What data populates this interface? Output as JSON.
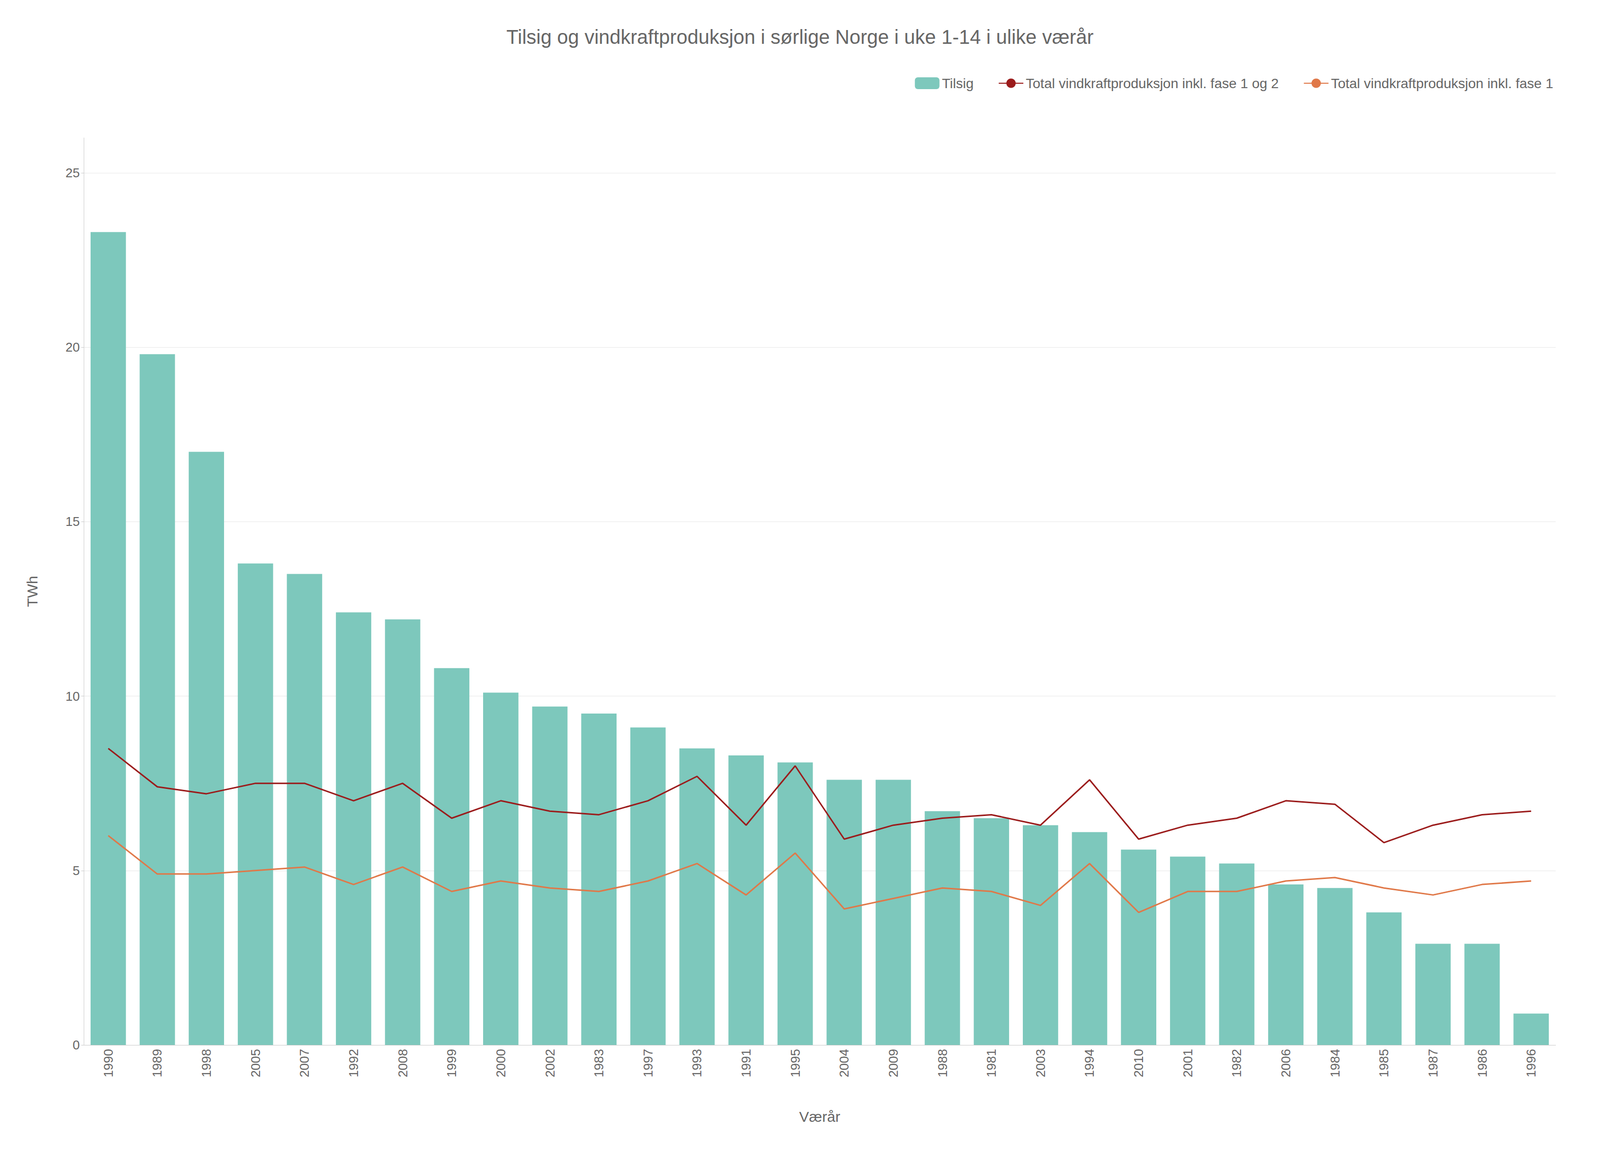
{
  "chart_data": {
    "type": "bar",
    "title": "Tilsig og vindkraftproduksjon i sørlige Norge i uke 1-14 i ulike værår",
    "xlabel": "Værår",
    "ylabel": "TWh",
    "categories": [
      "1990",
      "1989",
      "1998",
      "2005",
      "2007",
      "1992",
      "2008",
      "1999",
      "2000",
      "2002",
      "1983",
      "1997",
      "1993",
      "1991",
      "1995",
      "2004",
      "2009",
      "1988",
      "1981",
      "2003",
      "1994",
      "2010",
      "2001",
      "1982",
      "2006",
      "1984",
      "1985",
      "1987",
      "1986",
      "1996"
    ],
    "series": [
      {
        "name": "Tilsig",
        "type": "bar",
        "color": "#7DC8BC",
        "values": [
          23.3,
          19.8,
          17.0,
          13.8,
          13.5,
          12.4,
          12.2,
          10.8,
          10.1,
          9.7,
          9.5,
          9.1,
          8.5,
          8.3,
          8.1,
          7.6,
          7.6,
          6.7,
          6.5,
          6.3,
          6.1,
          5.6,
          5.4,
          5.2,
          4.6,
          4.5,
          3.8,
          2.9,
          2.9,
          0.9
        ]
      },
      {
        "name": "Total vindkraftproduksjon inkl. fase 1 og 2",
        "type": "line",
        "color": "#9B1B1B",
        "values": [
          8.5,
          7.4,
          7.2,
          7.5,
          7.5,
          7.0,
          7.5,
          6.5,
          7.0,
          6.7,
          6.6,
          7.0,
          7.7,
          6.3,
          8.0,
          5.9,
          6.3,
          6.5,
          6.6,
          6.3,
          7.6,
          5.9,
          6.3,
          6.5,
          7.0,
          6.9,
          5.8,
          6.3,
          6.6,
          6.7
        ]
      },
      {
        "name": "Total vindkraftproduksjon inkl. fase 1",
        "type": "line",
        "color": "#E07848",
        "values": [
          6.0,
          4.9,
          4.9,
          5.0,
          5.1,
          4.6,
          5.1,
          4.4,
          4.7,
          4.5,
          4.4,
          4.7,
          5.2,
          4.3,
          5.5,
          3.9,
          4.2,
          4.5,
          4.4,
          4.0,
          5.2,
          3.8,
          4.4,
          4.4,
          4.7,
          4.8,
          4.5,
          4.3,
          4.6,
          4.7
        ]
      }
    ],
    "ylim": [
      0,
      26
    ],
    "yticks": [
      0,
      5,
      10,
      15,
      20,
      25
    ],
    "grid": true,
    "legend": "upper right"
  }
}
